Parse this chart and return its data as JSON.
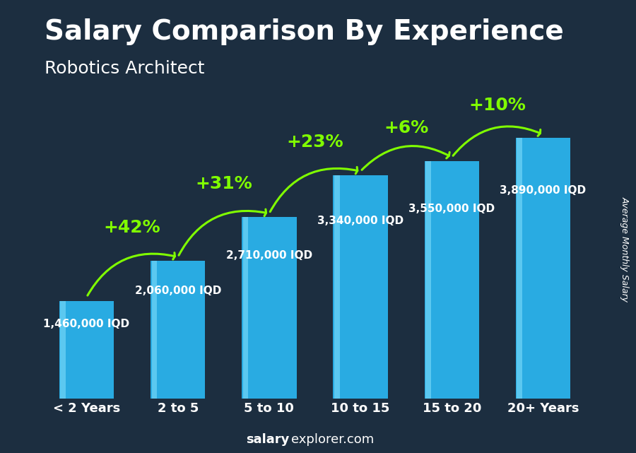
{
  "title": "Salary Comparison By Experience",
  "subtitle": "Robotics Architect",
  "categories": [
    "< 2 Years",
    "2 to 5",
    "5 to 10",
    "10 to 15",
    "15 to 20",
    "20+ Years"
  ],
  "values": [
    1460000,
    2060000,
    2710000,
    3340000,
    3550000,
    3890000
  ],
  "labels": [
    "1,460,000 IQD",
    "2,060,000 IQD",
    "2,710,000 IQD",
    "3,340,000 IQD",
    "3,550,000 IQD",
    "3,890,000 IQD"
  ],
  "pct_changes": [
    "+42%",
    "+31%",
    "+23%",
    "+6%",
    "+10%"
  ],
  "bar_color": "#29ABE2",
  "bar_color_light": "#5BC8F0",
  "bg_color": "#1C2E40",
  "text_color": "#ffffff",
  "green_color": "#80FF00",
  "ylabel": "Average Monthly Salary",
  "footer_bold": "salary",
  "footer_rest": "explorer.com",
  "ylim": [
    0,
    4600000
  ],
  "title_fontsize": 28,
  "subtitle_fontsize": 18,
  "label_fontsize": 11,
  "pct_fontsize": 18,
  "axis_fontsize": 13
}
